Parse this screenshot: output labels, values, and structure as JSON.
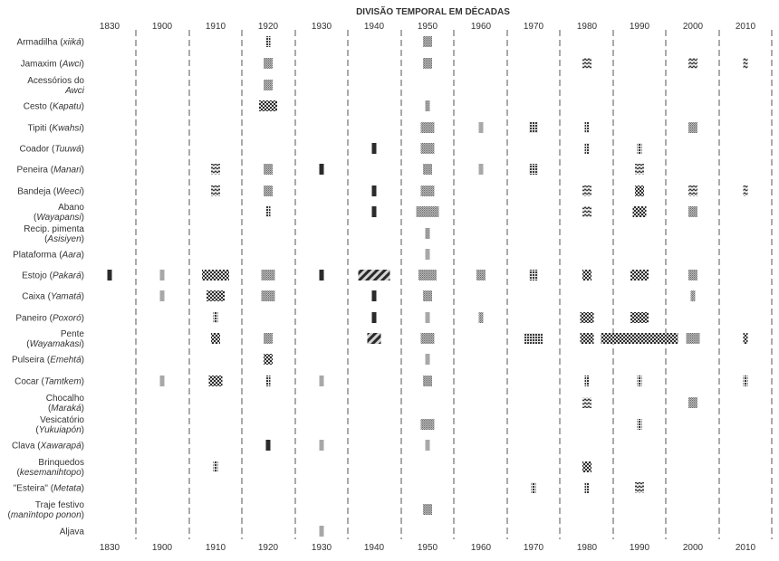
{
  "chart_data": {
    "type": "timeline-bars",
    "title": "DIVISÃO TEMPORAL EM DÉCADAS",
    "decades": [
      "1830",
      "1900",
      "1910",
      "1920",
      "1930",
      "1940",
      "1950",
      "1960",
      "1970",
      "1980",
      "1990",
      "2000",
      "2010"
    ],
    "patterns": {
      "dense": "dense stipple",
      "dots": "dotted",
      "check": "checkered",
      "wave": "zigzag",
      "diag": "diagonal hatch",
      "solid": "solid dark",
      "light": "light gray"
    },
    "rows": [
      {
        "label": [
          "Armadilha (",
          {
            "i": "xiiká"
          },
          ")"
        ],
        "cells": {
          "1920": [
            1,
            "dots"
          ],
          "1950": [
            2,
            "dense"
          ]
        }
      },
      {
        "label": [
          "Jamaxim (",
          {
            "i": "Awci"
          },
          ")"
        ],
        "cells": {
          "1920": [
            2,
            "dense"
          ],
          "1950": [
            2,
            "dense"
          ],
          "1980": [
            2,
            "wave"
          ],
          "2000": [
            2,
            "wave"
          ],
          "2010": [
            1,
            "wave"
          ]
        }
      },
      {
        "label": [
          "Acessórios do"
        ],
        "label2": [
          {
            "i": "Awci"
          }
        ],
        "cells": {
          "1920": [
            2,
            "dense"
          ]
        }
      },
      {
        "label": [
          "Cesto (",
          {
            "i": "Kapatu"
          },
          ")"
        ],
        "cells": {
          "1920": [
            4,
            "check"
          ],
          "1950": [
            1,
            "dense"
          ]
        }
      },
      {
        "label": [
          "Tipiti (",
          {
            "i": "Kwahsi"
          },
          ")"
        ],
        "cells": {
          "1950": [
            3,
            "dense"
          ],
          "1960": [
            1,
            "light"
          ],
          "1970": [
            2,
            "dots"
          ],
          "1980": [
            1,
            "dots"
          ],
          "2000": [
            2,
            "dense"
          ]
        }
      },
      {
        "label": [
          "Coador (",
          {
            "i": "Tuuwá"
          },
          ")"
        ],
        "cells": {
          "1940": [
            1,
            "solid"
          ],
          "1950": [
            3,
            "dense"
          ],
          "1980": [
            1,
            "dots"
          ],
          "1990": [
            1,
            "dots"
          ]
        }
      },
      {
        "label": [
          "Peneira (",
          {
            "i": "Manari"
          },
          ")"
        ],
        "cells": {
          "1910": [
            2,
            "wave"
          ],
          "1920": [
            2,
            "dense"
          ],
          "1930": [
            1,
            "solid"
          ],
          "1950": [
            2,
            "dense"
          ],
          "1960": [
            1,
            "light"
          ],
          "1970": [
            2,
            "dots"
          ],
          "1990": [
            2,
            "wave"
          ]
        }
      },
      {
        "label": [
          "Bandeja (",
          {
            "i": "Weeci"
          },
          ")"
        ],
        "cells": {
          "1910": [
            2,
            "wave"
          ],
          "1920": [
            2,
            "dense"
          ],
          "1940": [
            1,
            "solid"
          ],
          "1950": [
            3,
            "dense"
          ],
          "1980": [
            2,
            "wave"
          ],
          "1990": [
            2,
            "check"
          ],
          "2000": [
            2,
            "wave"
          ],
          "2010": [
            1,
            "wave"
          ]
        }
      },
      {
        "label": [
          "Abano"
        ],
        "label2": [
          "(",
          {
            "i": "Wayapansi"
          },
          ")"
        ],
        "cells": {
          "1920": [
            1,
            "dots"
          ],
          "1940": [
            1,
            "solid"
          ],
          "1950": [
            5,
            "dense"
          ],
          "1980": [
            2,
            "wave"
          ],
          "1990": [
            3,
            "check"
          ],
          "2000": [
            2,
            "dense"
          ]
        }
      },
      {
        "label": [
          "Recip. pimenta"
        ],
        "label2": [
          "(",
          {
            "i": "Asisiyen"
          },
          ")"
        ],
        "cells": {
          "1950": [
            1,
            "dense"
          ]
        }
      },
      {
        "label": [
          "Plataforma (",
          {
            "i": "Aara"
          },
          ")"
        ],
        "cells": {
          "1950": [
            1,
            "light"
          ]
        }
      },
      {
        "label": [
          "Estojo (",
          {
            "i": "Pakará"
          },
          ")"
        ],
        "cells": {
          "1830": [
            1,
            "solid"
          ],
          "1900": [
            1,
            "light"
          ],
          "1910": [
            6,
            "check"
          ],
          "1920": [
            3,
            "dense"
          ],
          "1930": [
            1,
            "solid"
          ],
          "1940": [
            7,
            "diag"
          ],
          "1950": [
            4,
            "dense"
          ],
          "1960": [
            2,
            "dense"
          ],
          "1970": [
            2,
            "dots"
          ],
          "1980": [
            2,
            "check"
          ],
          "1990": [
            4,
            "check"
          ],
          "2000": [
            2,
            "dense"
          ]
        }
      },
      {
        "label": [
          "Caixa (",
          {
            "i": "Yamatá"
          },
          ")"
        ],
        "cells": {
          "1900": [
            1,
            "light"
          ],
          "1910": [
            4,
            "check"
          ],
          "1920": [
            3,
            "dense"
          ],
          "1940": [
            1,
            "solid"
          ],
          "1950": [
            2,
            "dense"
          ],
          "2000": [
            1,
            "dense"
          ]
        }
      },
      {
        "label": [
          "Paneiro (",
          {
            "i": "Poxoró"
          },
          ")"
        ],
        "cells": {
          "1910": [
            1,
            "dots"
          ],
          "1940": [
            1,
            "solid"
          ],
          "1950": [
            1,
            "light"
          ],
          "1960": [
            1,
            "dense"
          ],
          "1980": [
            3,
            "check"
          ],
          "1990": [
            4,
            "check"
          ]
        }
      },
      {
        "label": [
          "Pente"
        ],
        "label2": [
          "(",
          {
            "i": "Wayamakasi"
          },
          ")"
        ],
        "cells": {
          "1910": [
            2,
            "check"
          ],
          "1920": [
            2,
            "dense"
          ],
          "1940": [
            3,
            "diag"
          ],
          "1950": [
            3,
            "dense"
          ],
          "1970": [
            4,
            "dots"
          ],
          "1980": [
            3,
            "check"
          ],
          "1990": [
            17,
            "check"
          ],
          "2000": [
            3,
            "dense"
          ],
          "2010": [
            1,
            "check"
          ]
        }
      },
      {
        "label": [
          "Pulseira (",
          {
            "i": "Emehtá"
          },
          ")"
        ],
        "cells": {
          "1920": [
            2,
            "check"
          ],
          "1950": [
            1,
            "light"
          ]
        }
      },
      {
        "label": [
          "Cocar (",
          {
            "i": "Tamtkem"
          },
          ")"
        ],
        "cells": {
          "1900": [
            1,
            "light"
          ],
          "1910": [
            3,
            "check"
          ],
          "1920": [
            1,
            "dots"
          ],
          "1930": [
            1,
            "light"
          ],
          "1950": [
            2,
            "dense"
          ],
          "1980": [
            1,
            "dots"
          ],
          "1990": [
            1,
            "dots"
          ],
          "2010": [
            1,
            "dots"
          ]
        }
      },
      {
        "label": [
          "Chocalho"
        ],
        "label2": [
          "(",
          {
            "i": "Maraká"
          },
          ")"
        ],
        "cells": {
          "1980": [
            2,
            "wave"
          ],
          "2000": [
            2,
            "dense"
          ]
        }
      },
      {
        "label": [
          "Vesicatório"
        ],
        "label2": [
          "(",
          {
            "i": "Yukuiapón"
          },
          ")"
        ],
        "cells": {
          "1950": [
            3,
            "dense"
          ],
          "1990": [
            1,
            "dots"
          ]
        }
      },
      {
        "label": [
          "Clava (",
          {
            "i": "Xawarapá"
          },
          ")"
        ],
        "cells": {
          "1920": [
            1,
            "solid"
          ],
          "1930": [
            1,
            "light"
          ],
          "1950": [
            1,
            "light"
          ]
        }
      },
      {
        "label": [
          "Brinquedos"
        ],
        "label2": [
          "(",
          {
            "i": "kesemanihtopo"
          },
          ")"
        ],
        "cells": {
          "1910": [
            1,
            "dots"
          ],
          "1980": [
            2,
            "check"
          ]
        }
      },
      {
        "label": [
          "\"Esteira\" (",
          {
            "i": "Metata"
          },
          ")"
        ],
        "cells": {
          "1970": [
            1,
            "dots"
          ],
          "1980": [
            1,
            "dots"
          ],
          "1990": [
            2,
            "wave"
          ]
        }
      },
      {
        "label": [
          "Traje festivo"
        ],
        "label2": [
          "(",
          {
            "i": "manïntopo ponon"
          },
          ")"
        ],
        "cells": {
          "1950": [
            2,
            "dense"
          ]
        }
      },
      {
        "label": [
          "Aljava"
        ],
        "cells": {
          "1930": [
            1,
            "light"
          ]
        }
      }
    ]
  }
}
